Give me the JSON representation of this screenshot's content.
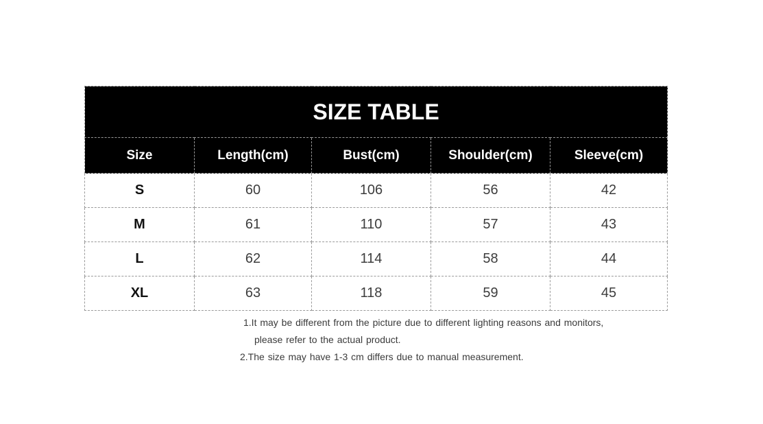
{
  "chart_data": {
    "type": "table",
    "title": "SIZE TABLE",
    "columns": [
      "Size",
      "Length(cm)",
      "Bust(cm)",
      "Shoulder(cm)",
      "Sleeve(cm)"
    ],
    "rows": [
      [
        "S",
        "60",
        "106",
        "56",
        "42"
      ],
      [
        "M",
        "61",
        "110",
        "57",
        "43"
      ],
      [
        "L",
        "62",
        "114",
        "58",
        "44"
      ],
      [
        "XL",
        "63",
        "118",
        "59",
        "45"
      ]
    ],
    "notes": [
      "1.It may be different from the picture due to different lighting reasons and monitors,",
      "please refer to the actual product.",
      "2.The size may have 1-3 cm differs due to manual measurement."
    ],
    "layout": {
      "grid": "dashed",
      "header_style": "black-band"
    }
  },
  "colors": {
    "header_bg": "#000000",
    "header_text": "#ffffff",
    "body_text": "#3d3d3d",
    "size_label_text": "#111111",
    "grid_line": "#999999",
    "background": "#ffffff"
  }
}
